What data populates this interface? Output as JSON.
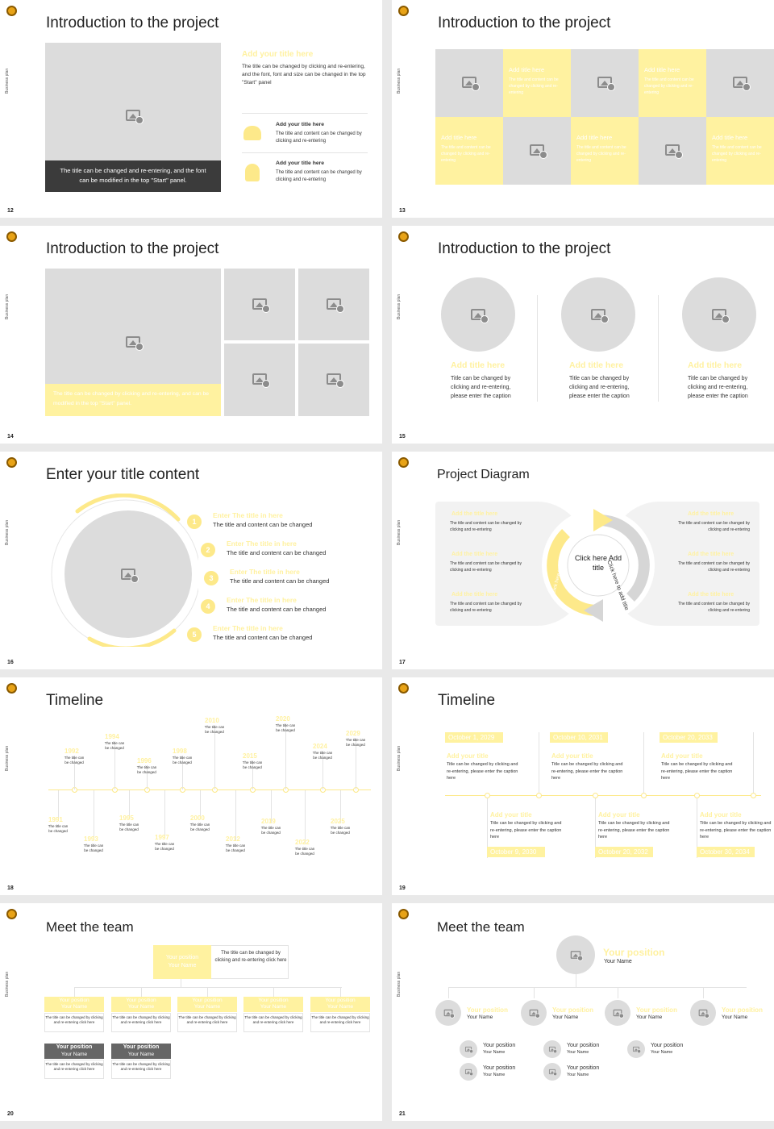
{
  "side_label": "Business plan",
  "s12": {
    "num": "12",
    "title": "Introduction to the project",
    "caption": "The title can be changed and re-entering, and the font can be modified in the top \"Start\" panel.",
    "heading": "Add your title here",
    "body": "The title can be changed by clicking and re-entering, and the font, font and size can be changed in the top \"Start\" panel",
    "items": [
      {
        "title": "Add your title here",
        "text": "The title and content can be changed by clicking and re-entering"
      },
      {
        "title": "Add your title here",
        "text": "The title and content can be changed by clicking and re-entering"
      }
    ]
  },
  "s13": {
    "num": "13",
    "title": "Introduction to the project",
    "cell_title": "Add title here",
    "cell_text": "The title and content can be changed by clicking and re-entering"
  },
  "s14": {
    "num": "14",
    "title": "Introduction to the project",
    "caption": "The title can be changed by clicking and re-entering, and can be modified in the top \"Start\" panel."
  },
  "s15": {
    "num": "15",
    "title": "Introduction to the project",
    "cols": [
      {
        "title": "Add title here",
        "text": "Title can be changed by clicking and re-entering, please enter the caption"
      },
      {
        "title": "Add title here",
        "text": "Title can be changed by clicking and re-entering, please enter the caption"
      },
      {
        "title": "Add title here",
        "text": "Title can be changed by clicking and re-entering, please enter the caption"
      }
    ]
  },
  "s16": {
    "num": "16",
    "title": "Enter your title content",
    "items": [
      {
        "n": "1",
        "title": "Enter The title in here",
        "text": "The title and content can be changed"
      },
      {
        "n": "2",
        "title": "Enter The title in here",
        "text": "The title and content can be changed"
      },
      {
        "n": "3",
        "title": "Enter The title in here",
        "text": "The title and content can be changed"
      },
      {
        "n": "4",
        "title": "Enter The title in here",
        "text": "The title and content can be changed"
      },
      {
        "n": "5",
        "title": "Enter The title in here",
        "text": "The title and content can be changed"
      }
    ]
  },
  "s17": {
    "num": "17",
    "title": "Project Diagram",
    "center": "Click here Add title",
    "arc_right": "Click here to add title",
    "arc_left": "Click here to add title",
    "item_title": "Add the title here",
    "item_text": "The title and content can be changed by clicking and re-entering"
  },
  "s18": {
    "num": "18",
    "title": "Timeline",
    "top": [
      {
        "y": "1992"
      },
      {
        "y": "1994"
      },
      {
        "y": "1996"
      },
      {
        "y": "1998"
      },
      {
        "y": "2010"
      },
      {
        "y": "2015"
      },
      {
        "y": "2020"
      },
      {
        "y": "2024"
      },
      {
        "y": "2029"
      }
    ],
    "bottom": [
      {
        "y": "1991"
      },
      {
        "y": "1993"
      },
      {
        "y": "1995"
      },
      {
        "y": "1997"
      },
      {
        "y": "2000"
      },
      {
        "y": "2012"
      },
      {
        "y": "2019"
      },
      {
        "y": "2022"
      },
      {
        "y": "2025"
      }
    ],
    "text": "The title can be changed"
  },
  "s19": {
    "num": "19",
    "title": "Timeline",
    "top_dates": [
      "October 1, 2029",
      "October 10, 2031",
      "October 20, 2033"
    ],
    "bottom_dates": [
      "October 9, 2030",
      "October 20, 2032",
      "October 30, 2034"
    ],
    "item_title": "Add your title",
    "item_text": "Title can be changed by clicking and re-entering, please enter the caption here"
  },
  "s20": {
    "num": "20",
    "title": "Meet the team",
    "position": "Your position",
    "name": "Your Name",
    "text": "The title can be changed by clicking and re-entering click here"
  },
  "s21": {
    "num": "21",
    "title": "Meet the team",
    "position": "Your position",
    "name": "Your Name"
  }
}
